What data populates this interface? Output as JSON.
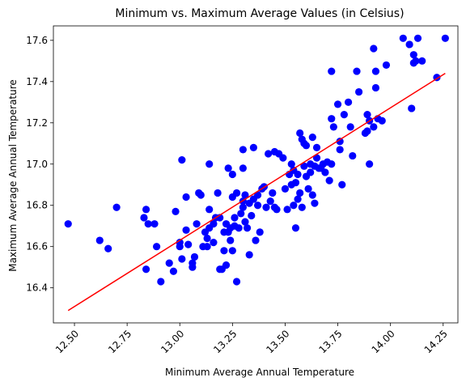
{
  "chart_data": {
    "type": "scatter",
    "title": "Minimum vs. Maximum Average Values (in Celsius)",
    "xlabel": "Minimum Average Annual Temperature",
    "ylabel": "Maximum Average Annual Temperature",
    "xlim": [
      12.4,
      14.32
    ],
    "ylim": [
      16.23,
      17.67
    ],
    "xticks": [
      12.5,
      12.75,
      13.0,
      13.25,
      13.5,
      13.75,
      14.0,
      14.25
    ],
    "xtick_labels": [
      "12.50",
      "12.75",
      "13.00",
      "13.25",
      "13.50",
      "13.75",
      "14.00",
      "14.25"
    ],
    "yticks": [
      16.4,
      16.6,
      16.8,
      17.0,
      17.2,
      17.4,
      17.6
    ],
    "ytick_labels": [
      "16.4",
      "16.6",
      "16.8",
      "17.0",
      "17.2",
      "17.4",
      "17.6"
    ],
    "grid": false,
    "point_color": "#0000ff",
    "line_color": "#ff0000",
    "trend_line": {
      "x": [
        12.47,
        14.26
      ],
      "y": [
        16.29,
        17.44
      ]
    },
    "points": [
      [
        12.47,
        16.71
      ],
      [
        12.62,
        16.63
      ],
      [
        12.66,
        16.59
      ],
      [
        12.7,
        16.79
      ],
      [
        12.83,
        16.74
      ],
      [
        12.84,
        16.78
      ],
      [
        12.84,
        16.49
      ],
      [
        12.85,
        16.71
      ],
      [
        12.88,
        16.71
      ],
      [
        12.89,
        16.6
      ],
      [
        12.91,
        16.43
      ],
      [
        12.95,
        16.52
      ],
      [
        12.97,
        16.48
      ],
      [
        12.98,
        16.77
      ],
      [
        13.0,
        16.62
      ],
      [
        13.0,
        16.6
      ],
      [
        13.01,
        17.02
      ],
      [
        13.01,
        16.54
      ],
      [
        13.03,
        16.84
      ],
      [
        13.03,
        16.68
      ],
      [
        13.04,
        16.61
      ],
      [
        13.06,
        16.5
      ],
      [
        13.06,
        16.52
      ],
      [
        13.07,
        16.55
      ],
      [
        13.08,
        16.71
      ],
      [
        13.09,
        16.86
      ],
      [
        13.1,
        16.85
      ],
      [
        13.11,
        16.6
      ],
      [
        13.12,
        16.67
      ],
      [
        13.13,
        16.64
      ],
      [
        13.13,
        16.6
      ],
      [
        13.14,
        16.69
      ],
      [
        13.14,
        16.78
      ],
      [
        13.14,
        17.0
      ],
      [
        13.16,
        16.71
      ],
      [
        13.16,
        16.62
      ],
      [
        13.17,
        16.74
      ],
      [
        13.18,
        16.86
      ],
      [
        13.19,
        16.74
      ],
      [
        13.19,
        16.49
      ],
      [
        13.2,
        16.49
      ],
      [
        13.21,
        16.67
      ],
      [
        13.21,
        16.58
      ],
      [
        13.22,
        16.51
      ],
      [
        13.22,
        16.71
      ],
      [
        13.23,
        16.67
      ],
      [
        13.23,
        16.98
      ],
      [
        13.24,
        16.63
      ],
      [
        13.24,
        16.69
      ],
      [
        13.25,
        16.58
      ],
      [
        13.25,
        16.84
      ],
      [
        13.25,
        16.95
      ],
      [
        13.26,
        16.7
      ],
      [
        13.26,
        16.74
      ],
      [
        13.27,
        16.43
      ],
      [
        13.27,
        16.86
      ],
      [
        13.28,
        16.69
      ],
      [
        13.29,
        16.76
      ],
      [
        13.3,
        16.79
      ],
      [
        13.3,
        16.82
      ],
      [
        13.3,
        16.98
      ],
      [
        13.3,
        17.07
      ],
      [
        13.31,
        16.85
      ],
      [
        13.31,
        16.72
      ],
      [
        13.32,
        16.69
      ],
      [
        13.33,
        16.56
      ],
      [
        13.33,
        16.81
      ],
      [
        13.34,
        16.75
      ],
      [
        13.35,
        17.08
      ],
      [
        13.35,
        16.83
      ],
      [
        13.36,
        16.63
      ],
      [
        13.37,
        16.8
      ],
      [
        13.37,
        16.85
      ],
      [
        13.38,
        16.67
      ],
      [
        13.39,
        16.88
      ],
      [
        13.4,
        16.89
      ],
      [
        13.41,
        16.79
      ],
      [
        13.42,
        17.05
      ],
      [
        13.43,
        16.82
      ],
      [
        13.44,
        16.86
      ],
      [
        13.45,
        17.06
      ],
      [
        13.45,
        16.79
      ],
      [
        13.46,
        16.78
      ],
      [
        13.47,
        17.05
      ],
      [
        13.49,
        17.03
      ],
      [
        13.5,
        16.88
      ],
      [
        13.51,
        16.78
      ],
      [
        13.52,
        16.95
      ],
      [
        13.53,
        17.0
      ],
      [
        13.53,
        16.9
      ],
      [
        13.54,
        16.8
      ],
      [
        13.54,
        16.97
      ],
      [
        13.55,
        16.69
      ],
      [
        13.55,
        16.91
      ],
      [
        13.56,
        16.95
      ],
      [
        13.56,
        16.83
      ],
      [
        13.57,
        17.15
      ],
      [
        13.57,
        16.86
      ],
      [
        13.58,
        17.12
      ],
      [
        13.58,
        16.79
      ],
      [
        13.59,
        17.1
      ],
      [
        13.59,
        16.99
      ],
      [
        13.6,
        17.09
      ],
      [
        13.6,
        16.94
      ],
      [
        13.61,
        16.88
      ],
      [
        13.62,
        16.96
      ],
      [
        13.62,
        17.0
      ],
      [
        13.63,
        17.13
      ],
      [
        13.63,
        16.85
      ],
      [
        13.64,
        16.99
      ],
      [
        13.64,
        16.81
      ],
      [
        13.65,
        17.08
      ],
      [
        13.65,
        17.03
      ],
      [
        13.66,
        16.98
      ],
      [
        13.67,
        16.98
      ],
      [
        13.68,
        17.0
      ],
      [
        13.69,
        16.96
      ],
      [
        13.7,
        17.01
      ],
      [
        13.71,
        16.92
      ],
      [
        13.72,
        17.0
      ],
      [
        13.72,
        17.45
      ],
      [
        13.72,
        17.22
      ],
      [
        13.73,
        17.18
      ],
      [
        13.75,
        17.29
      ],
      [
        13.76,
        17.07
      ],
      [
        13.76,
        17.11
      ],
      [
        13.77,
        16.9
      ],
      [
        13.78,
        17.24
      ],
      [
        13.8,
        17.3
      ],
      [
        13.81,
        17.18
      ],
      [
        13.82,
        17.04
      ],
      [
        13.84,
        17.45
      ],
      [
        13.85,
        17.35
      ],
      [
        13.88,
        17.15
      ],
      [
        13.89,
        17.24
      ],
      [
        13.89,
        17.16
      ],
      [
        13.9,
        17.0
      ],
      [
        13.9,
        17.21
      ],
      [
        13.92,
        17.56
      ],
      [
        13.92,
        17.18
      ],
      [
        13.93,
        17.45
      ],
      [
        13.93,
        17.37
      ],
      [
        13.94,
        17.22
      ],
      [
        13.96,
        17.21
      ],
      [
        13.98,
        17.48
      ],
      [
        14.06,
        17.61
      ],
      [
        14.09,
        17.58
      ],
      [
        14.1,
        17.27
      ],
      [
        14.11,
        17.49
      ],
      [
        14.11,
        17.53
      ],
      [
        14.12,
        17.5
      ],
      [
        14.13,
        17.61
      ],
      [
        14.15,
        17.5
      ],
      [
        14.22,
        17.42
      ],
      [
        14.26,
        17.61
      ]
    ]
  }
}
